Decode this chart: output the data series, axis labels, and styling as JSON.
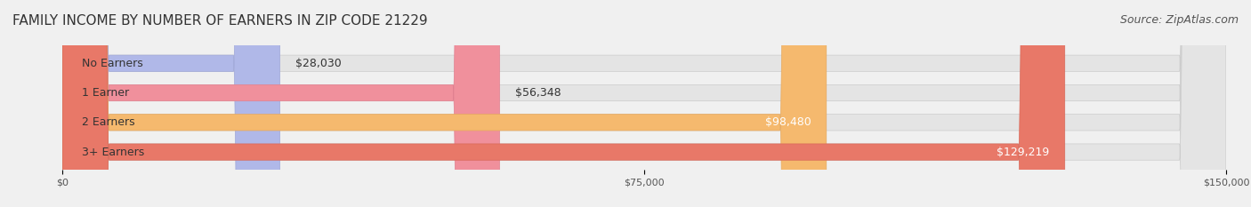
{
  "title": "FAMILY INCOME BY NUMBER OF EARNERS IN ZIP CODE 21229",
  "source": "Source: ZipAtlas.com",
  "categories": [
    "No Earners",
    "1 Earner",
    "2 Earners",
    "3+ Earners"
  ],
  "values": [
    28030,
    56348,
    98480,
    129219
  ],
  "labels": [
    "$28,030",
    "$56,348",
    "$98,480",
    "$129,219"
  ],
  "bar_colors": [
    "#b0b8e8",
    "#f0909c",
    "#f5b96e",
    "#e87868"
  ],
  "bar_edge_colors": [
    "#a0a8d8",
    "#e08090",
    "#e5a85e",
    "#d86858"
  ],
  "background_color": "#f0f0f0",
  "bar_bg_color": "#e8e8e8",
  "xlim": [
    0,
    150000
  ],
  "xticks": [
    0,
    75000,
    150000
  ],
  "xtick_labels": [
    "$0",
    "$75,000",
    "$150,000"
  ],
  "title_fontsize": 11,
  "source_fontsize": 9,
  "label_fontsize": 9,
  "category_fontsize": 9,
  "bar_height": 0.55,
  "label_inside_threshold": 80000
}
